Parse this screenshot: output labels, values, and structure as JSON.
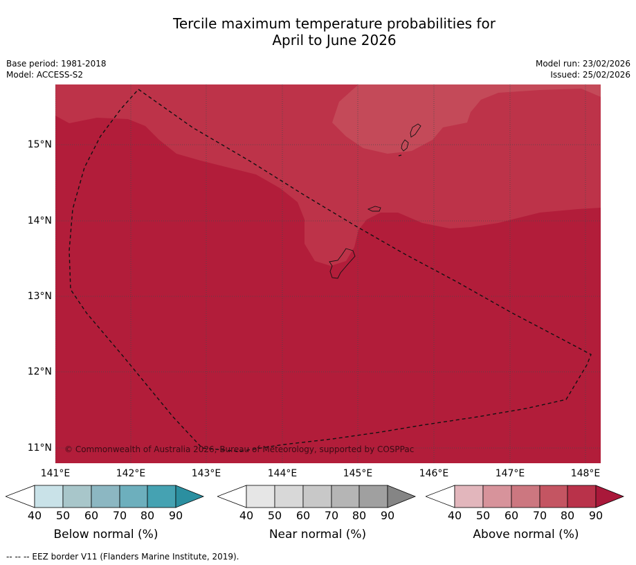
{
  "title": {
    "line1": "Tercile maximum temperature probabilities for",
    "line2": "April to June 2026"
  },
  "meta": {
    "base_period": "Base period: 1981-2018",
    "model": "Model: ACCESS-S2",
    "model_run": "Model run: 23/02/2026",
    "issued": "Issued: 25/02/2026"
  },
  "map": {
    "copyright": "© Commonwealth of Australia 2026, Bureau of Meteorology, supported by COSPPac",
    "latitudes": [
      "15°N",
      "14°N",
      "13°N",
      "12°N",
      "11°N"
    ],
    "longitudes": [
      "141°E",
      "142°E",
      "143°E",
      "144°E",
      "145°E",
      "146°E",
      "147°E",
      "148°E"
    ],
    "colors": {
      "above_80_90": "#b21d3a",
      "above_70_80": "#bd3349",
      "above_60_70": "#c44a59"
    }
  },
  "legends": [
    {
      "title": "Below normal (%)",
      "ticks": [
        "40",
        "50",
        "60",
        "70",
        "80",
        "90"
      ],
      "colors": [
        "#ffffff",
        "#c9e2e8",
        "#a8c6ca",
        "#8cb7c2",
        "#6dafbd",
        "#45a2b2",
        "#2b8fa0"
      ]
    },
    {
      "title": "Near normal (%)",
      "ticks": [
        "40",
        "50",
        "60",
        "70",
        "80",
        "90"
      ],
      "colors": [
        "#ffffff",
        "#e6e6e6",
        "#d8d8d8",
        "#c8c8c8",
        "#b5b5b5",
        "#a0a0a0",
        "#858585"
      ]
    },
    {
      "title": "Above normal (%)",
      "ticks": [
        "40",
        "50",
        "60",
        "70",
        "80",
        "90"
      ],
      "colors": [
        "#ffffff",
        "#e2b6bc",
        "#d7939b",
        "#cc7780",
        "#c45562",
        "#b9324a",
        "#a9183a"
      ]
    }
  ],
  "footnote": "--  --  -- EEZ border V11 (Flanders Marine Institute, 2019)."
}
